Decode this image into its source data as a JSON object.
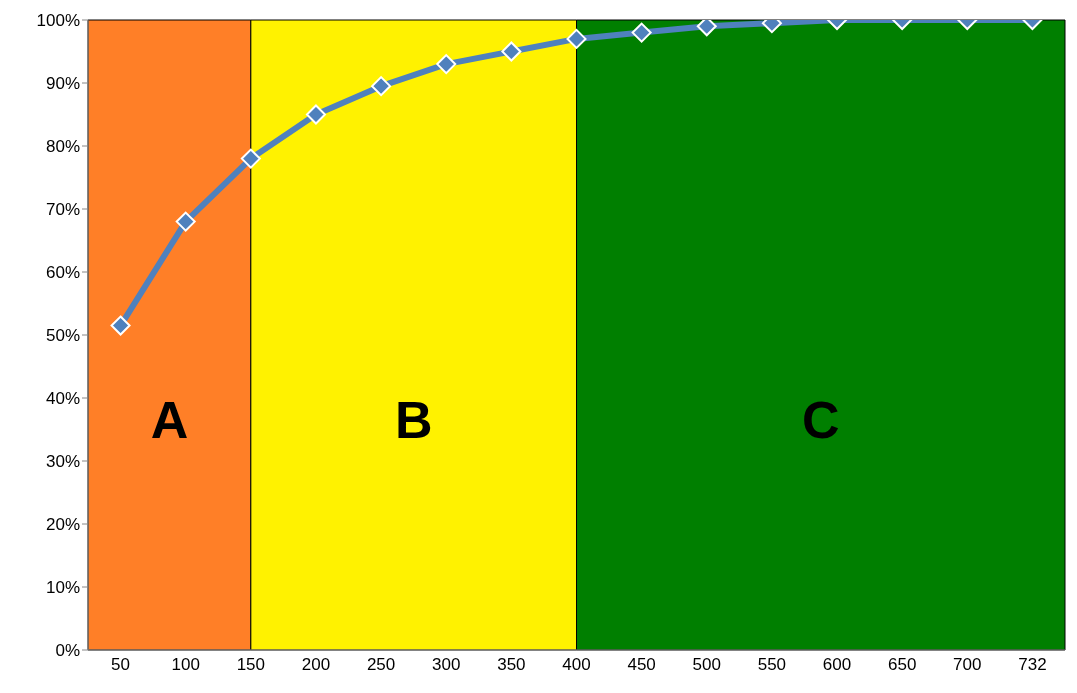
{
  "chart_data": {
    "type": "line",
    "categories": [
      "50",
      "100",
      "150",
      "200",
      "250",
      "300",
      "350",
      "400",
      "450",
      "500",
      "550",
      "600",
      "650",
      "700",
      "732"
    ],
    "series": [
      {
        "color": "#4f81bd",
        "values": [
          51.5,
          68,
          78,
          85,
          89.5,
          93,
          95,
          97,
          98,
          99,
          99.5,
          100,
          100,
          100,
          100
        ]
      }
    ],
    "ylim": [
      0,
      100
    ],
    "yticks": [
      {
        "value": 0,
        "label": "0%"
      },
      {
        "value": 10,
        "label": "10%"
      },
      {
        "value": 20,
        "label": "20%"
      },
      {
        "value": 30,
        "label": "30%"
      },
      {
        "value": 40,
        "label": "40%"
      },
      {
        "value": 50,
        "label": "50%"
      },
      {
        "value": 60,
        "label": "60%"
      },
      {
        "value": 70,
        "label": "70%"
      },
      {
        "value": 80,
        "label": "80%"
      },
      {
        "value": 90,
        "label": "90%"
      },
      {
        "value": 100,
        "label": "100%"
      }
    ],
    "bands": [
      {
        "axis": "x",
        "from": "50",
        "to": "150",
        "label": "A",
        "color": "#ff7f27"
      },
      {
        "axis": "x",
        "from": "150",
        "to": "400",
        "label": "B",
        "color": "#fff200"
      },
      {
        "axis": "x",
        "from": "400",
        "to": "732",
        "label": "C",
        "color": "#007f00"
      }
    ],
    "grid": false,
    "legend": false,
    "marker": "diamond",
    "line_style": "solid"
  }
}
